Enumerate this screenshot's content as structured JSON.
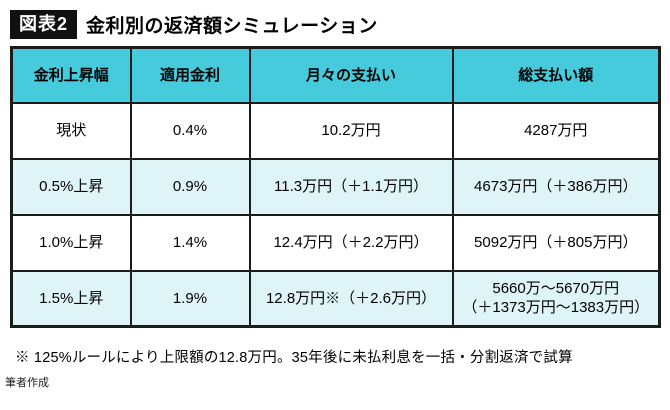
{
  "figure": {
    "tag": "図表2",
    "title": "金利別の返済額シミュレーション"
  },
  "chart_data": {
    "type": "table",
    "title": "金利別の返済額シミュレーション",
    "columns": [
      "金利上昇幅",
      "適用金利",
      "月々の支払い",
      "総支払い額"
    ],
    "rows": [
      [
        "現状",
        "0.4%",
        "10.2万円",
        "4287万円"
      ],
      [
        "0.5%上昇",
        "0.9%",
        "11.3万円（＋1.1万円）",
        "4673万円（＋386万円）"
      ],
      [
        "1.0%上昇",
        "1.4%",
        "12.4万円（＋2.2万円）",
        "5092万円（＋805万円）"
      ],
      [
        "1.5%上昇",
        "1.9%",
        "12.8万円※（＋2.6万円）",
        "5660万～5670万円\n（＋1373万円～1383万円）"
      ]
    ]
  },
  "footnote": "※ 125%ルールにより上限額の12.8万円。35年後に未払利息を一括・分割返済で試算",
  "credit": "筆者作成",
  "colors": {
    "header_bg": "#45CBDC",
    "stripe_bg": "#DFF4F7",
    "border_color": "#1b1b1b",
    "tag_bg": "#111111"
  }
}
